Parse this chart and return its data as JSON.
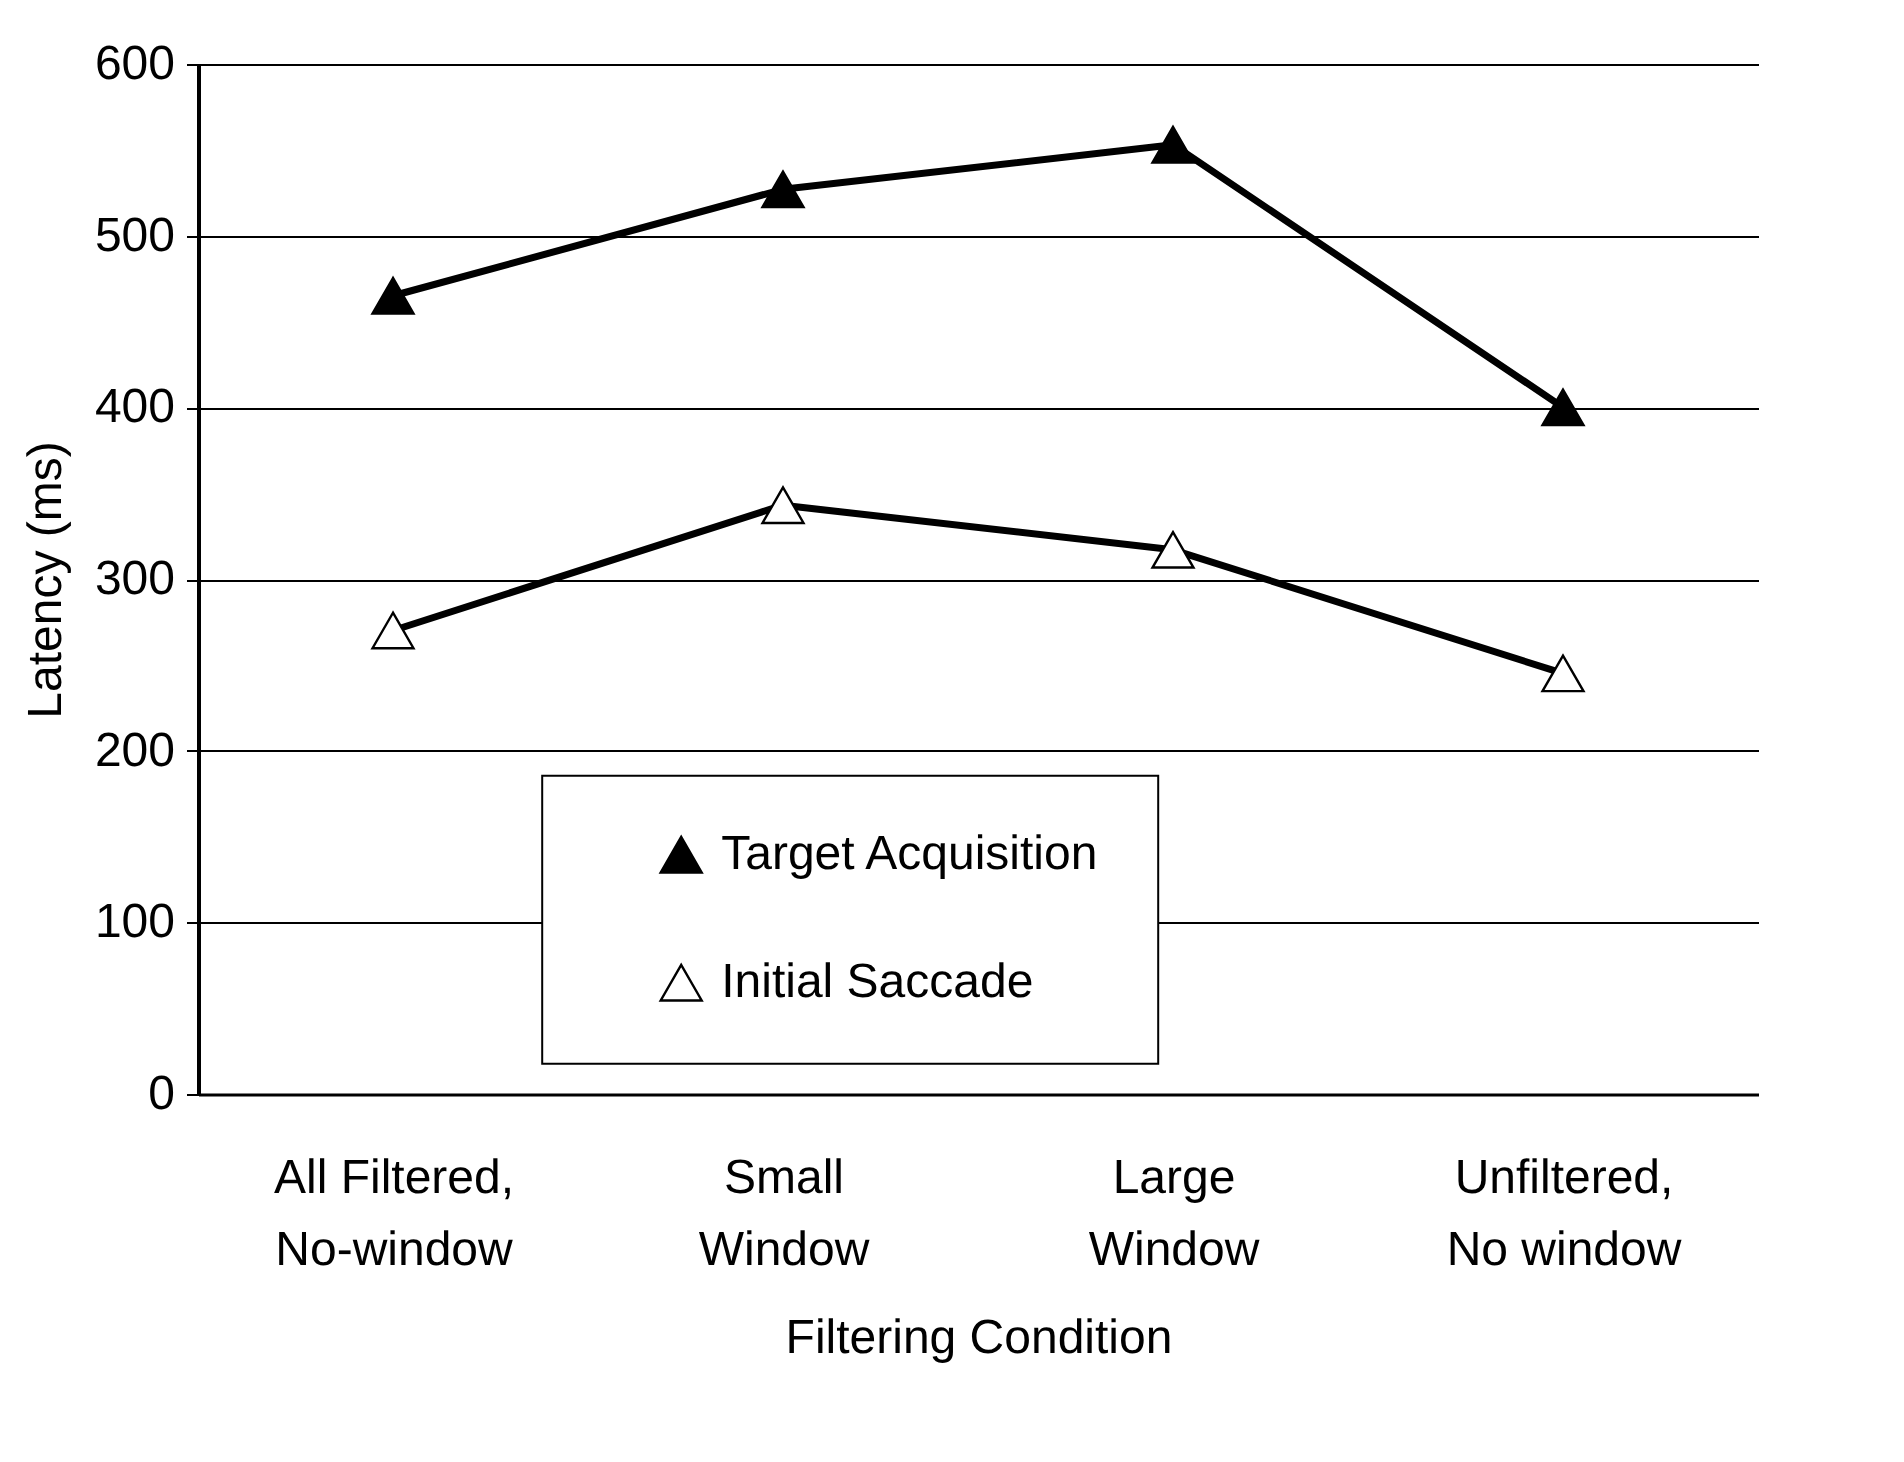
{
  "chart_data": {
    "type": "line",
    "xlabel": "Filtering Condition",
    "ylabel": "Latency (ms)",
    "categories": [
      "All Filtered,\nNo-window",
      "Small\nWindow",
      "Large\nWindow",
      "Unfiltered,\nNo window"
    ],
    "series": [
      {
        "name": "Target Acquisition",
        "color": "#000000",
        "values": [
          465,
          527,
          553,
          400
        ]
      },
      {
        "name": "Initial Saccade",
        "color": "#000000",
        "values": [
          270,
          343,
          317,
          245
        ]
      }
    ],
    "ylim": [
      0,
      600
    ],
    "yticks": [
      0,
      100,
      200,
      300,
      400,
      500,
      600
    ],
    "grid": "y",
    "legend": "bottom",
    "marker": "triangle",
    "line_style": "solid"
  }
}
